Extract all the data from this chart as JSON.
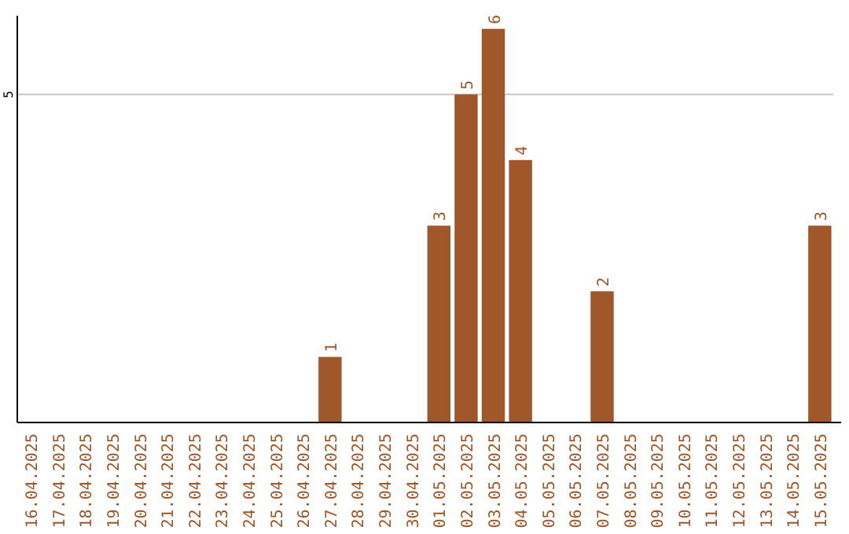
{
  "chart_data": {
    "type": "bar",
    "categories": [
      "16.04.2025",
      "17.04.2025",
      "18.04.2025",
      "19.04.2025",
      "20.04.2025",
      "21.04.2025",
      "22.04.2025",
      "23.04.2025",
      "24.04.2025",
      "25.04.2025",
      "26.04.2025",
      "27.04.2025",
      "28.04.2025",
      "29.04.2025",
      "30.04.2025",
      "01.05.2025",
      "02.05.2025",
      "03.05.2025",
      "04.05.2025",
      "05.05.2025",
      "06.05.2025",
      "07.05.2025",
      "08.05.2025",
      "09.05.2025",
      "10.05.2025",
      "11.05.2025",
      "12.05.2025",
      "13.05.2025",
      "14.05.2025",
      "15.05.2025"
    ],
    "values": [
      0,
      0,
      0,
      0,
      0,
      0,
      0,
      0,
      0,
      0,
      0,
      1,
      0,
      0,
      0,
      3,
      5,
      6,
      4,
      0,
      0,
      2,
      0,
      0,
      0,
      0,
      0,
      0,
      0,
      3
    ],
    "value_labels": [
      null,
      null,
      null,
      null,
      null,
      null,
      null,
      null,
      null,
      null,
      null,
      "1",
      null,
      null,
      null,
      "3",
      "5",
      "6",
      "4",
      null,
      null,
      "2",
      null,
      null,
      null,
      null,
      null,
      null,
      null,
      "3"
    ],
    "color": "#a0572a",
    "ylim": [
      0,
      6.2
    ],
    "yticks": [
      5
    ],
    "grid": "y"
  }
}
